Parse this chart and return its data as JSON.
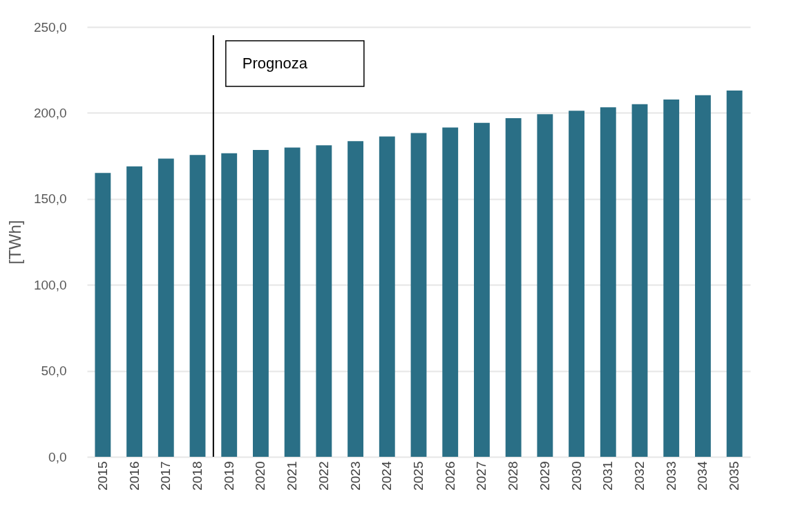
{
  "chart_data": {
    "type": "bar",
    "ylabel": "[TWh]",
    "categories": [
      "2015",
      "2016",
      "2017",
      "2018",
      "2019",
      "2020",
      "2021",
      "2022",
      "2023",
      "2024",
      "2025",
      "2026",
      "2027",
      "2028",
      "2029",
      "2030",
      "2031",
      "2032",
      "2033",
      "2034",
      "2035"
    ],
    "values": [
      165.1,
      168.9,
      173.4,
      175.5,
      176.5,
      178.5,
      179.9,
      181.2,
      183.6,
      186.3,
      188.3,
      191.5,
      194.2,
      196.9,
      199.3,
      201.3,
      203.3,
      205.1,
      207.8,
      210.3,
      213.0
    ],
    "color": "#2a6f86",
    "ylim": [
      0,
      250
    ],
    "yticks": [
      {
        "value": 0,
        "label": "0,0"
      },
      {
        "value": 50,
        "label": "50,0"
      },
      {
        "value": 100,
        "label": "100,0"
      },
      {
        "value": 150,
        "label": "150,0"
      },
      {
        "value": 200,
        "label": "200,0"
      },
      {
        "value": 250,
        "label": "250,0"
      }
    ],
    "grid": true,
    "ref_lines": [
      {
        "axis": "x",
        "value": "2018",
        "label": "Prognoza",
        "color": "#000000"
      }
    ]
  }
}
